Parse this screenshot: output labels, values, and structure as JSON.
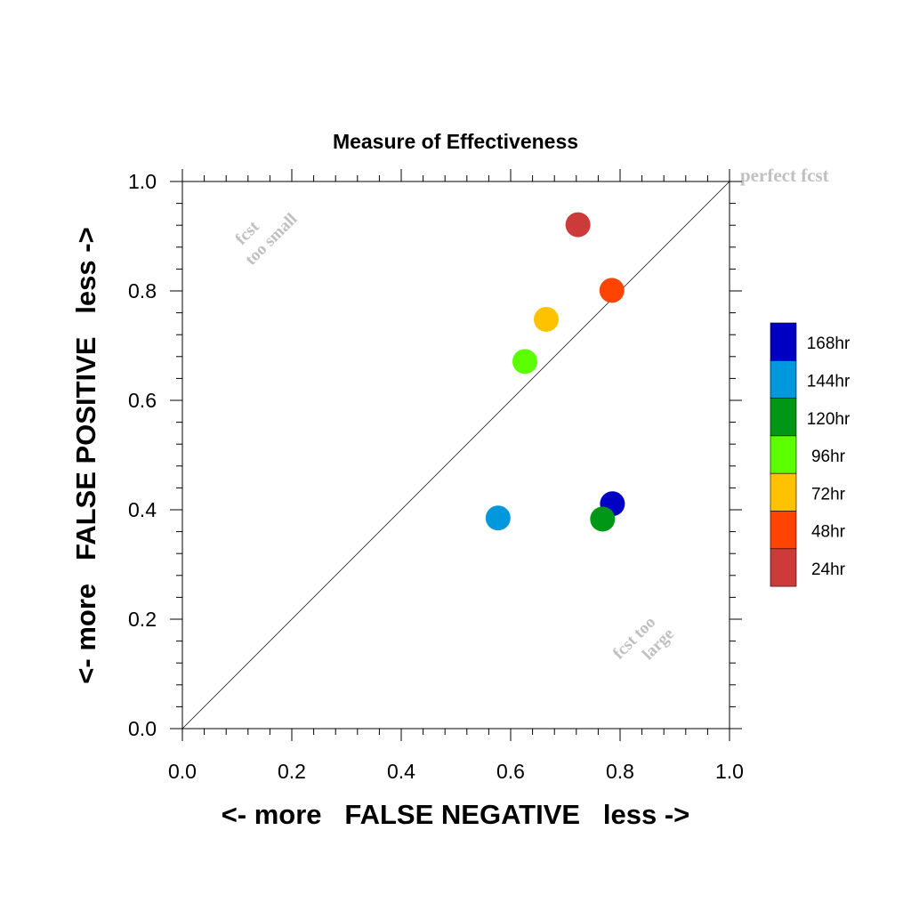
{
  "chart_data": {
    "type": "scatter",
    "title": "Measure of Effectiveness",
    "xlabel": "<- more   FALSE NEGATIVE   less ->",
    "ylabel": "<- more   FALSE POSITIVE   less ->",
    "xlim": [
      0,
      1
    ],
    "ylim": [
      0,
      1
    ],
    "xticks": [
      "0.0",
      "0.2",
      "0.4",
      "0.6",
      "0.8",
      "1.0"
    ],
    "yticks": [
      "0.0",
      "0.2",
      "0.4",
      "0.6",
      "0.8",
      "1.0"
    ],
    "grid": false,
    "reference_line": {
      "from": [
        0,
        0
      ],
      "to": [
        1,
        1
      ]
    },
    "annotations": {
      "perfect": "perfect fcst",
      "small_line1": "fcst",
      "small_line2": "too small",
      "large_line1": "fcst too",
      "large_line2": "large"
    },
    "legend_placement": "right",
    "series": [
      {
        "name": "168hr",
        "color": "#0000c4",
        "x": 0.786,
        "y": 0.411
      },
      {
        "name": "144hr",
        "color": "#0098dc",
        "x": 0.577,
        "y": 0.385
      },
      {
        "name": "120hr",
        "color": "#009616",
        "x": 0.768,
        "y": 0.383
      },
      {
        "name": "96hr",
        "color": "#5cff00",
        "x": 0.626,
        "y": 0.671
      },
      {
        "name": "72hr",
        "color": "#ffc200",
        "x": 0.665,
        "y": 0.748
      },
      {
        "name": "48hr",
        "color": "#ff4400",
        "x": 0.785,
        "y": 0.801
      },
      {
        "name": "24hr",
        "color": "#cc3a3a",
        "x": 0.723,
        "y": 0.921
      }
    ]
  }
}
